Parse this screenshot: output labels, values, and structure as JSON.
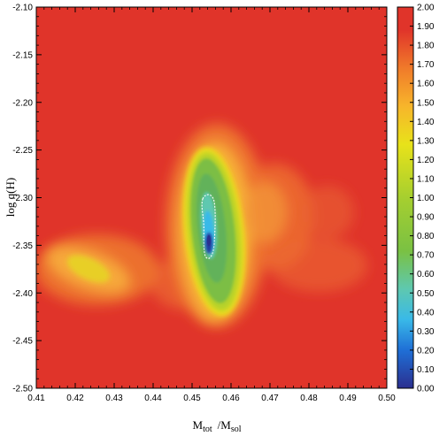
{
  "chart_data": {
    "type": "heatmap",
    "title": "",
    "xlabel_main": "M",
    "xlabel_sub1": "tot",
    "xlabel_sep": "/M",
    "xlabel_sub2": "sol",
    "ylabel": "log q(H)",
    "xlim": [
      0.41,
      0.5
    ],
    "ylim": [
      -2.5,
      -2.1
    ],
    "x_ticks": [
      "0.41",
      "0.42",
      "0.43",
      "0.44",
      "0.45",
      "0.46",
      "0.47",
      "0.48",
      "0.49",
      "0.50"
    ],
    "y_ticks": [
      "-2.10",
      "-2.15",
      "-2.20",
      "-2.25",
      "-2.30",
      "-2.35",
      "-2.40",
      "-2.45",
      "-2.50"
    ],
    "colorbar": {
      "range": [
        0.0,
        2.0
      ],
      "ticks": [
        "2.00",
        "1.90",
        "1.80",
        "1.70",
        "1.60",
        "1.50",
        "1.40",
        "1.30",
        "1.20",
        "1.10",
        "1.00",
        "0.90",
        "0.80",
        "0.70",
        "0.60",
        "0.50",
        "0.40",
        "0.30",
        "0.20",
        "0.10",
        "0.00"
      ],
      "colors": [
        "#2b2f8f",
        "#1f6fd6",
        "#39b9e8",
        "#5ec8b0",
        "#7ac143",
        "#a6cf2f",
        "#e8e21a",
        "#f7b52b",
        "#f07a2a",
        "#e0342a"
      ]
    },
    "background_value": 2.0,
    "minimum": {
      "x": 0.4515,
      "y": -2.348,
      "value": 0.15
    }
  }
}
